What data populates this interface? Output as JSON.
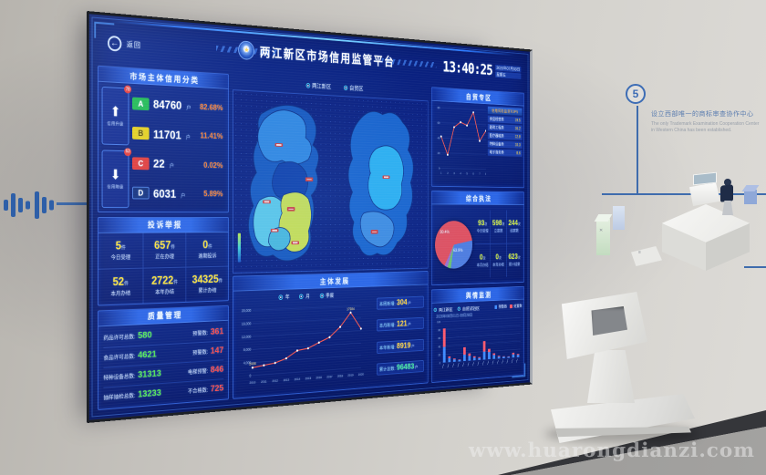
{
  "watermark": "www.huarongdianzi.com",
  "wall": {
    "milestone_number": "5",
    "milestone_title": "设立西部唯一的商标审查协作中心",
    "milestone_en_line1": "The only Trademark Examination Cooperation Center",
    "milestone_en_line2": "in Western China has been established."
  },
  "screen": {
    "back_label": "返回",
    "title": "两江新区市场信用监管平台",
    "clock": {
      "time": "13:40:25",
      "date": "2020年07月03日",
      "weekday": "星期五"
    },
    "credit": {
      "title": "市场主体信用分类",
      "up_badge": "78",
      "up_label": "信用升级",
      "down_badge": "63",
      "down_label": "信用降级",
      "rows": [
        {
          "grade": "A",
          "count": "84760",
          "unit": "户",
          "pct": "82.68%"
        },
        {
          "grade": "B",
          "count": "11701",
          "unit": "户",
          "pct": "11.41%"
        },
        {
          "grade": "C",
          "count": "22",
          "unit": "户",
          "pct": "0.02%"
        },
        {
          "grade": "D",
          "count": "6031",
          "unit": "户",
          "pct": "5.89%"
        }
      ]
    },
    "complaints": {
      "title": "投诉举报",
      "cells": [
        {
          "value": "5",
          "unit": "件",
          "label": "今日受理"
        },
        {
          "value": "657",
          "unit": "件",
          "label": "正在办理"
        },
        {
          "value": "0",
          "unit": "件",
          "label": "逾期投诉"
        },
        {
          "value": "52",
          "unit": "件",
          "label": "本月办结"
        },
        {
          "value": "2722",
          "unit": "件",
          "label": "本年办结"
        },
        {
          "value": "34325",
          "unit": "件",
          "label": "累计办结"
        }
      ]
    },
    "quality": {
      "title": "质量管理",
      "rows": [
        {
          "l1": "药品许可总数:",
          "v1": "580",
          "l2": "预警数:",
          "v2": "361"
        },
        {
          "l1": "食品许可总数:",
          "v1": "4621",
          "l2": "预警数:",
          "v2": "147"
        },
        {
          "l1": "特种设备总数:",
          "v1": "31313",
          "l2": "电梯预警:",
          "v2": "846"
        },
        {
          "l1": "抽样抽检总数:",
          "v1": "13233",
          "l2": "不合格数:",
          "v2": "725"
        }
      ]
    },
    "map": {
      "tabs": [
        "两江新区",
        "自贸区"
      ]
    },
    "development": {
      "title": "主体发展",
      "tabs": [
        "年",
        "月",
        "季度"
      ],
      "stats": [
        {
          "label": "本周新增:",
          "value": "304",
          "unit": "户"
        },
        {
          "label": "本月新增:",
          "value": "121",
          "unit": "户"
        },
        {
          "label": "本年新增:",
          "value": "8919",
          "unit": "户"
        },
        {
          "label": "累计总数:",
          "value": "96483",
          "unit": "户"
        }
      ],
      "chart_data": {
        "type": "line",
        "x": [
          "2010",
          "2011",
          "2012",
          "2013",
          "2014",
          "2015",
          "2016",
          "2017",
          "2018",
          "2019",
          "2020"
        ],
        "values": [
          2408,
          2900,
          3400,
          4600,
          6800,
          7300,
          8900,
          10400,
          13500,
          17934,
          12600
        ],
        "ylim": [
          0,
          20000
        ],
        "yticks": [
          "0",
          "4,000",
          "8,000",
          "12,000",
          "16,000",
          "20,000"
        ],
        "annotations": [
          {
            "i": 0,
            "text": "2408"
          },
          {
            "i": 9,
            "text": "17934"
          }
        ],
        "line_color": "#ff5a50"
      }
    },
    "ftz": {
      "title": "自贸专区",
      "list_header": "信用风险监测TOP5",
      "list": [
        {
          "name": "食品经营类",
          "value": "19.5"
        },
        {
          "name": "建筑工程类",
          "value": "16.2"
        },
        {
          "name": "医疗器械类",
          "value": "12.8"
        },
        {
          "name": "特种设备类",
          "value": "10.3"
        },
        {
          "name": "电子商务类",
          "value": "8.6"
        }
      ],
      "chart_data": {
        "type": "line",
        "x": [
          "1",
          "2",
          "3",
          "4",
          "5",
          "6",
          "7",
          "8"
        ],
        "values": [
          42,
          18,
          55,
          62,
          58,
          76,
          38,
          52
        ],
        "ylim": [
          0,
          80
        ],
        "yticks": [
          "0",
          "20",
          "40",
          "60",
          "80"
        ],
        "line_color": "#ff5a50"
      }
    },
    "enforcement": {
      "title": "综合执法",
      "pie": {
        "type": "pie",
        "slices": [
          {
            "label": "63.9%",
            "value": 63.9,
            "color": "#e05060"
          },
          {
            "label": "30.4%",
            "value": 30.4,
            "color": "#4f7de0"
          },
          {
            "label": "",
            "value": 3.0,
            "color": "#6cc070"
          },
          {
            "label": "",
            "value": 2.7,
            "color": "#9a6fd0"
          }
        ]
      },
      "cells": [
        {
          "value": "93",
          "unit": "次",
          "label": "今日受理"
        },
        {
          "value": "598",
          "unit": "次",
          "label": "立案数"
        },
        {
          "value": "244",
          "unit": "次",
          "label": "结案数"
        },
        {
          "value": "0",
          "unit": "次",
          "label": "本月办结"
        },
        {
          "value": "0",
          "unit": "次",
          "label": "本年办结"
        },
        {
          "value": "623",
          "unit": "次",
          "label": "累计结案"
        }
      ]
    },
    "sentiment": {
      "title": "舆情监测",
      "tabs": [
        "两江新区",
        "自贸试验区"
      ],
      "legend": [
        {
          "label": "预警数",
          "color": "#3f8cff"
        },
        {
          "label": "处置数",
          "color": "#ff5a6e"
        }
      ],
      "caption": "2020年08月01日-08月28日",
      "chart_data": {
        "type": "bar",
        "series": [
          {
            "name": "预警数",
            "values": [
              38,
              10,
              6,
              4,
              16,
              12,
              7,
              5,
              20,
              18,
              10,
              5,
              4,
              3,
              8,
              6
            ]
          },
          {
            "name": "处置数",
            "values": [
              45,
              4,
              2,
              1,
              18,
              6,
              3,
              2,
              26,
              8,
              4,
              2,
              1,
              1,
              4,
              2
            ]
          }
        ],
        "ylim": [
          0,
          100
        ],
        "yticks": [
          "0",
          "20",
          "40",
          "60",
          "80",
          "100"
        ]
      }
    }
  }
}
